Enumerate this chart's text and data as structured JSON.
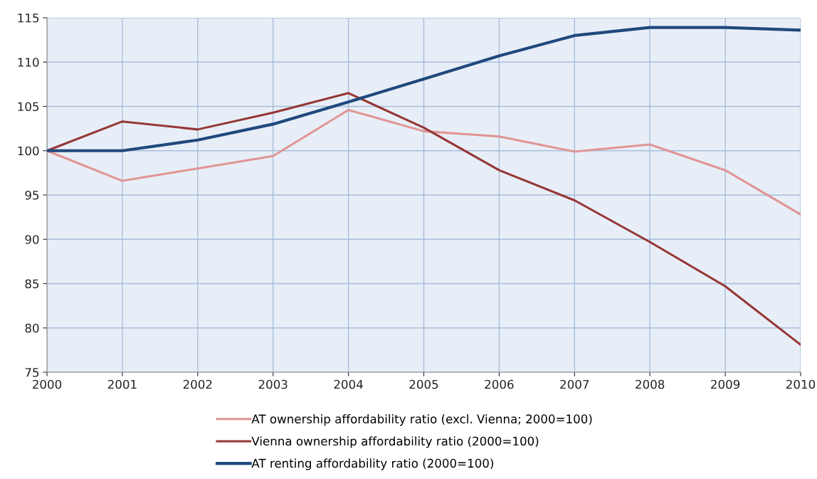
{
  "chart_data": {
    "type": "line",
    "x": [
      2000,
      2001,
      2002,
      2003,
      2004,
      2005,
      2006,
      2007,
      2008,
      2009,
      2010
    ],
    "series": [
      {
        "name": "AT ownership affordability ratio (excl. Vienna; 2000=100)",
        "color": "#e09594",
        "values": [
          100,
          96.6,
          98.0,
          99.4,
          104.6,
          102.2,
          101.6,
          99.9,
          100.7,
          97.8,
          92.8
        ]
      },
      {
        "name": "Vienna ownership affordability ratio (2000=100)",
        "color": "#953735",
        "values": [
          100,
          103.3,
          102.4,
          104.3,
          106.5,
          102.6,
          97.8,
          94.4,
          89.7,
          84.7,
          78.1
        ]
      },
      {
        "name": "AT renting affordability ratio (2000=100)",
        "color": "#1f497d",
        "values": [
          100,
          100,
          101.2,
          103.0,
          105.5,
          108.1,
          110.7,
          113.0,
          113.9,
          113.9,
          113.6
        ]
      }
    ],
    "xlim": [
      2000,
      2010
    ],
    "xticks": [
      2000,
      2001,
      2002,
      2003,
      2004,
      2005,
      2006,
      2007,
      2008,
      2009,
      2010
    ],
    "ylim": [
      75,
      115
    ],
    "yticks": [
      75,
      80,
      85,
      90,
      95,
      100,
      105,
      110,
      115
    ],
    "grid": true,
    "legend": "bottom",
    "marker": "none",
    "line_style": "solid"
  }
}
